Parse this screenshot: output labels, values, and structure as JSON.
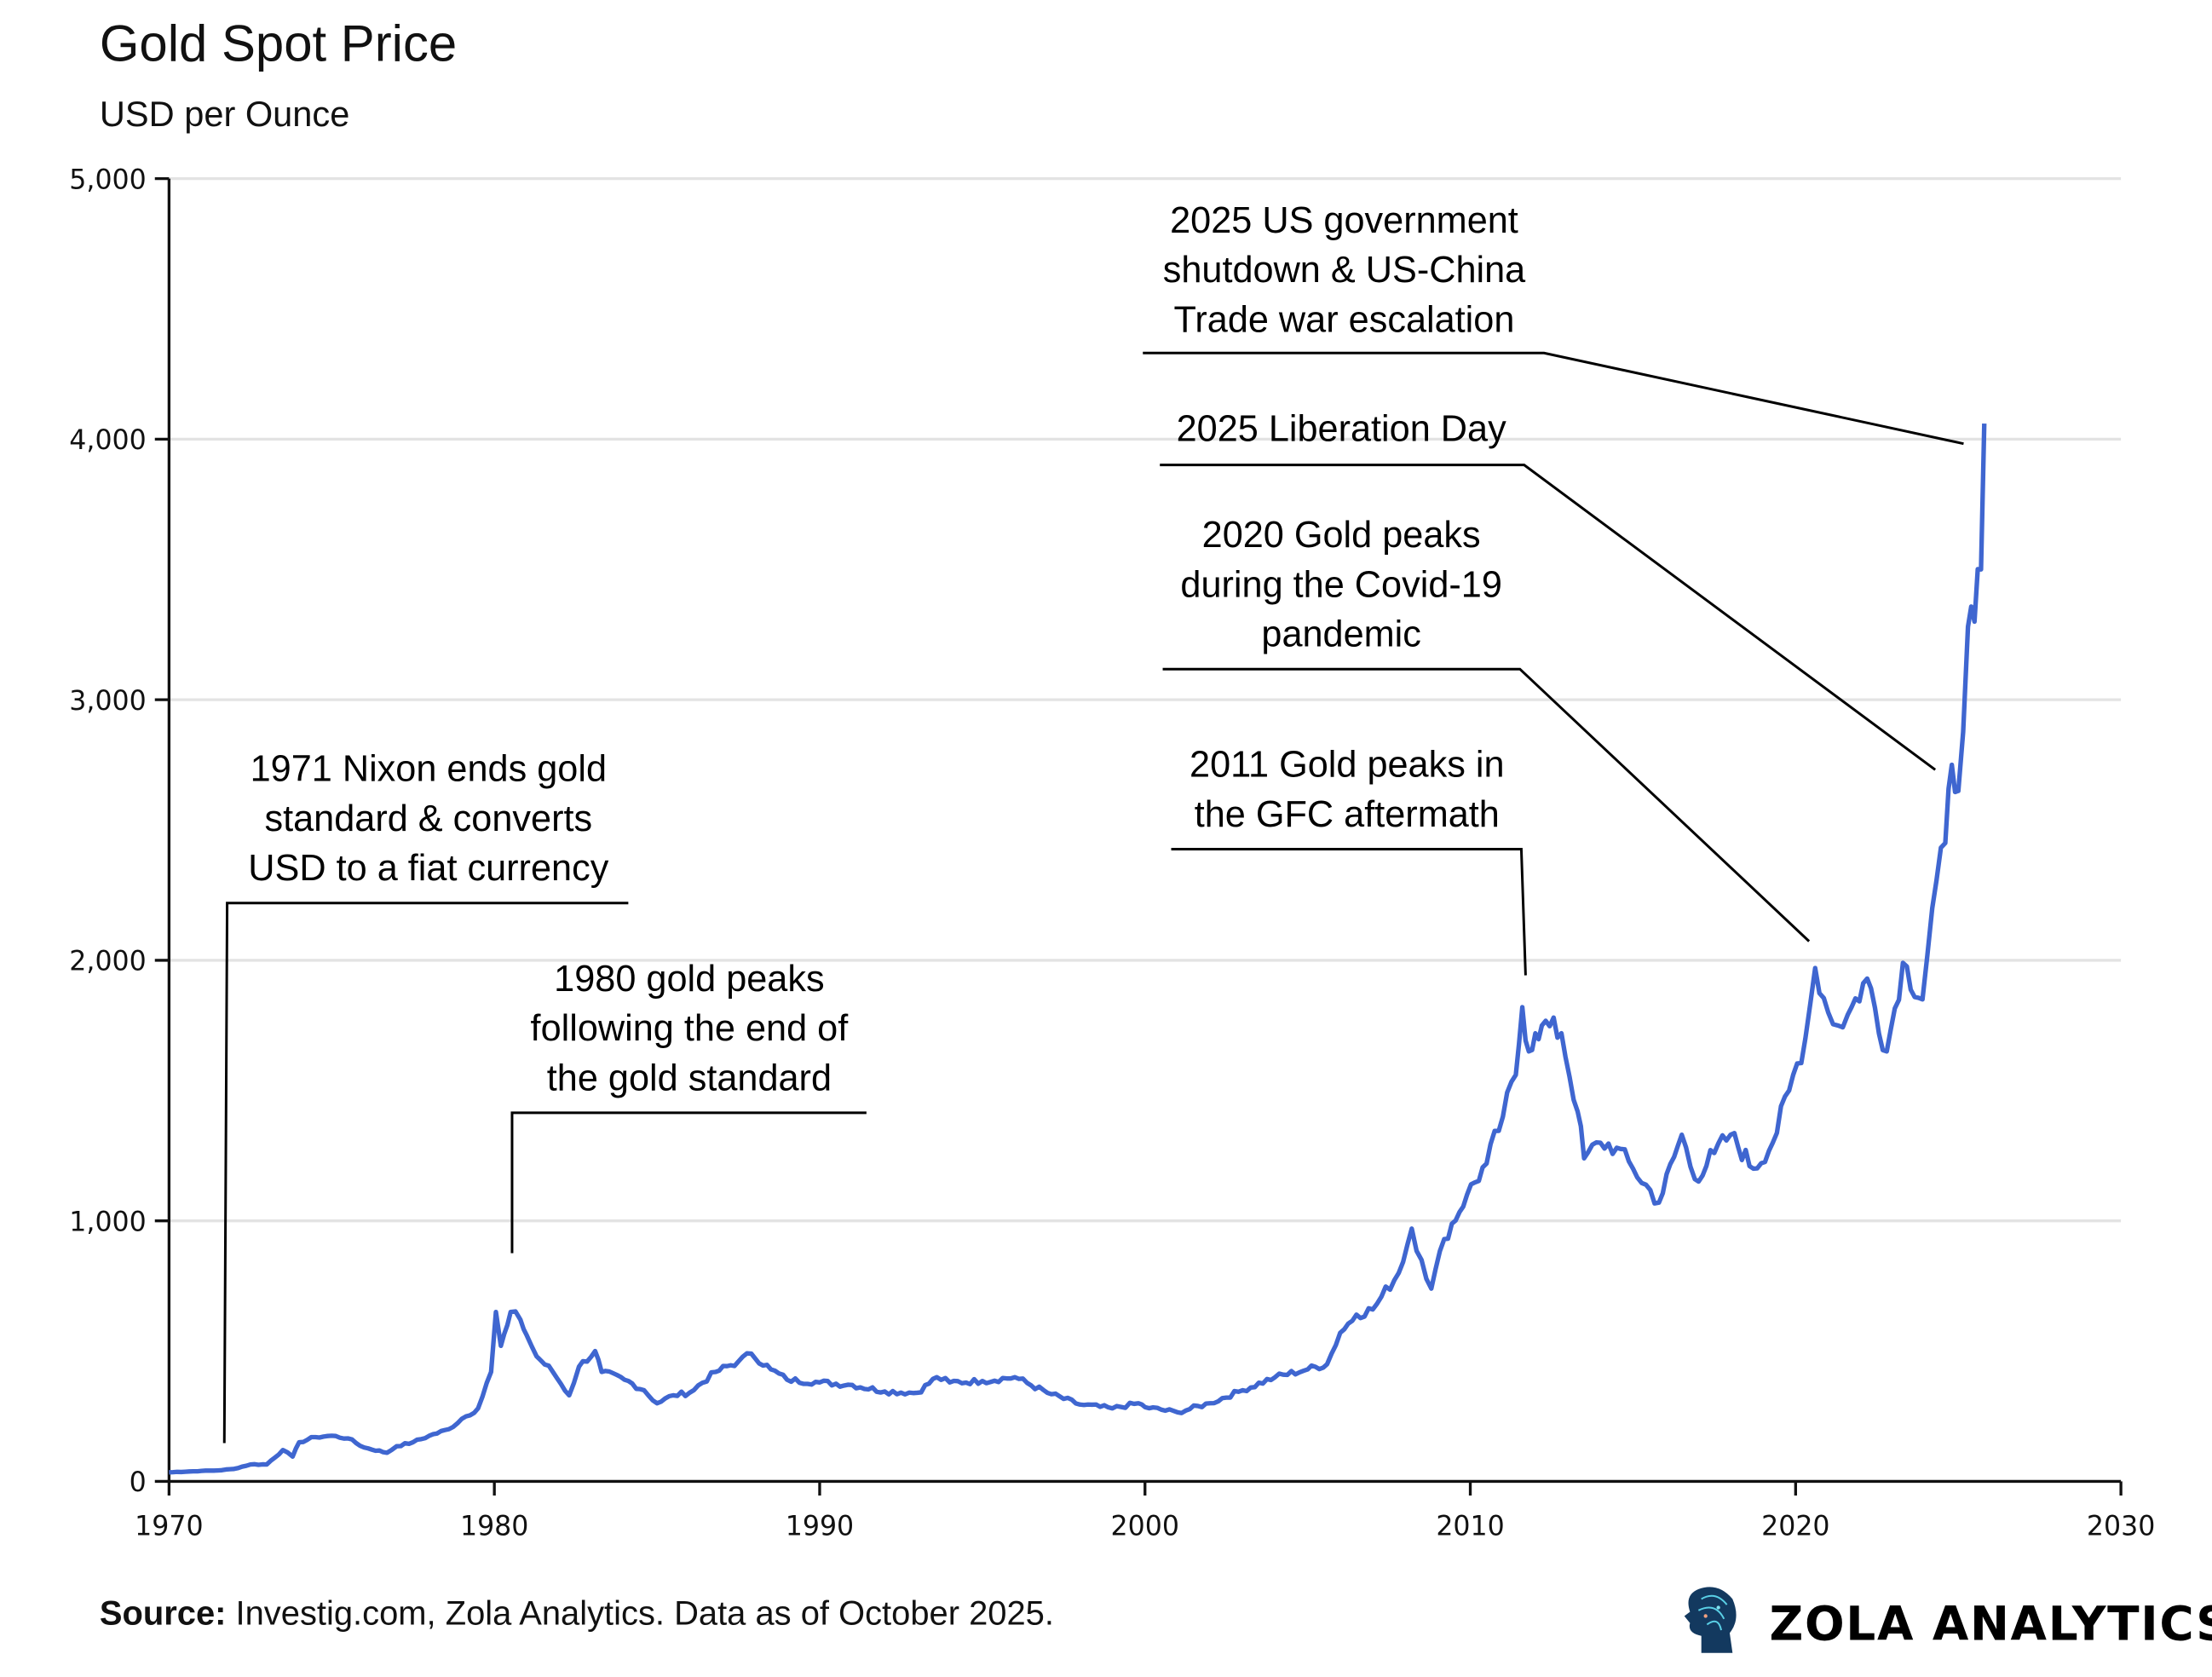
{
  "chart_data": {
    "type": "line",
    "title": "Gold Spot Price",
    "subtitle": "USD per Ounce",
    "xlabel": "",
    "ylabel": "",
    "xlim": [
      1970,
      2030
    ],
    "ylim": [
      0,
      5000
    ],
    "x_ticks": [
      "1970",
      "1980",
      "1990",
      "2000",
      "2010",
      "2020",
      "2030"
    ],
    "y_ticks": [
      "0",
      "1,000",
      "2,000",
      "3,000",
      "4,000",
      "5,000"
    ],
    "grid": "horizontal",
    "line_color": "#3f66d0",
    "series": [
      {
        "x": [
          1970,
          1971,
          1971.5,
          1972,
          1972.5,
          1973,
          1973.5,
          1973.8,
          1974,
          1974.5,
          1975,
          1975.5,
          1976,
          1976.7,
          1977,
          1977.5,
          1978,
          1978.6,
          1979,
          1979.5,
          1979.9,
          1980.05,
          1980.2,
          1980.4,
          1980.5,
          1980.8,
          1981,
          1981.3,
          1981.8,
          1982.3,
          1982.6,
          1983.1,
          1983.3,
          1984,
          1984.6,
          1985,
          1985.5,
          1986,
          1986.8,
          1987.5,
          1987.9,
          1988.5,
          1989,
          1990,
          1991,
          1992,
          1993,
          1993.6,
          1994,
          1995,
          1996,
          1997,
          1998,
          1999,
          1999.8,
          2000,
          2001,
          2002,
          2003,
          2004,
          2005,
          2005.6,
          2006,
          2006.5,
          2007,
          2007.8,
          2008.2,
          2008.5,
          2008.8,
          2009.2,
          2009.9,
          2010.5,
          2011,
          2011.4,
          2011.6,
          2011.8,
          2012,
          2012.2,
          2012.8,
          2013.3,
          2013.5,
          2014,
          2014.5,
          2015,
          2015.8,
          2016.5,
          2016.9,
          2017.5,
          2018,
          2018.7,
          2019.3,
          2019.8,
          2020.3,
          2020.6,
          2021,
          2021.3,
          2021.6,
          2022.2,
          2022.8,
          2023.3,
          2023.9,
          2024.2,
          2024.6,
          2024.8,
          2025.0,
          2025.3,
          2025.5,
          2025.7,
          2025.8
        ],
        "y": [
          35,
          40,
          42,
          48,
          65,
          65,
          120,
          95,
          150,
          170,
          175,
          165,
          130,
          110,
          135,
          150,
          175,
          200,
          240,
          280,
          420,
          650,
          520,
          600,
          650,
          620,
          560,
          480,
          420,
          330,
          440,
          500,
          420,
          390,
          350,
          300,
          330,
          340,
          420,
          460,
          490,
          430,
          390,
          380,
          370,
          345,
          340,
          400,
          380,
          385,
          400,
          340,
          295,
          280,
          300,
          285,
          265,
          300,
          350,
          400,
          430,
          450,
          570,
          640,
          660,
          800,
          970,
          850,
          740,
          930,
          1100,
          1220,
          1400,
          1560,
          1820,
          1650,
          1720,
          1750,
          1720,
          1420,
          1240,
          1300,
          1280,
          1200,
          1070,
          1330,
          1160,
          1260,
          1330,
          1200,
          1300,
          1500,
          1700,
          1970,
          1800,
          1750,
          1790,
          1930,
          1650,
          1990,
          1850,
          2200,
          2450,
          2750,
          2650,
          3280,
          3300,
          3500,
          4060
        ]
      }
    ],
    "annotations": [
      {
        "lines": [
          "1971 Nixon ends gold",
          "standard & converts",
          "USD to a fiat currency"
        ]
      },
      {
        "lines": [
          "1980 gold peaks",
          "following the end of",
          "the gold standard"
        ]
      },
      {
        "lines": [
          "2011 Gold peaks in",
          "the GFC aftermath"
        ]
      },
      {
        "lines": [
          "2020 Gold peaks",
          "during the Covid-19",
          "pandemic"
        ]
      },
      {
        "lines": [
          "2025 Liberation Day"
        ]
      },
      {
        "lines": [
          "2025 US government",
          "shutdown & US-China",
          "Trade war escalation"
        ]
      }
    ]
  },
  "footer": {
    "source_label": "Source:",
    "source_text": " Investig.com, Zola Analytics. Data as of October 2025.",
    "logo_text": "ZOLA ANALYTICS"
  }
}
